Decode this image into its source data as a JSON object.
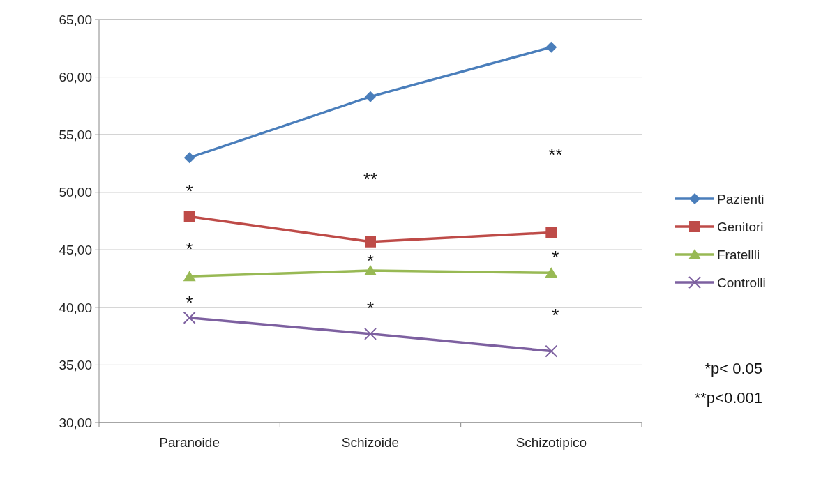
{
  "chart_data": {
    "type": "line",
    "categories": [
      "Paranoide",
      "Schizoide",
      "Schizotipico"
    ],
    "series": [
      {
        "name": "Pazienti",
        "color": "#4a7ebb",
        "marker": "diamond",
        "values": [
          53.0,
          58.3,
          62.6
        ]
      },
      {
        "name": "Genitori",
        "color": "#be4b48",
        "marker": "square",
        "values": [
          47.9,
          45.7,
          46.5
        ]
      },
      {
        "name": "Fratellli",
        "color": "#98b954",
        "marker": "triangle",
        "values": [
          42.7,
          43.2,
          43.0
        ]
      },
      {
        "name": "Controlli",
        "color": "#7d60a0",
        "marker": "cross",
        "values": [
          39.1,
          37.7,
          36.2
        ]
      }
    ],
    "ylim": [
      30,
      65
    ],
    "yticks": [
      {
        "value": 30,
        "label": "30,00"
      },
      {
        "value": 35,
        "label": "35,00"
      },
      {
        "value": 40,
        "label": "40,00"
      },
      {
        "value": 45,
        "label": "45,00"
      },
      {
        "value": 50,
        "label": "50,00"
      },
      {
        "value": 55,
        "label": "55,00"
      },
      {
        "value": 60,
        "label": "60,00"
      },
      {
        "value": 65,
        "label": "65,00"
      }
    ],
    "grid": "y",
    "legend": "right",
    "line_style": "solid",
    "annotations": [
      "*",
      "*",
      "*",
      "**",
      "*",
      "*",
      "**",
      "*",
      "*",
      "*p< 0.05",
      "**p<0.001"
    ]
  }
}
